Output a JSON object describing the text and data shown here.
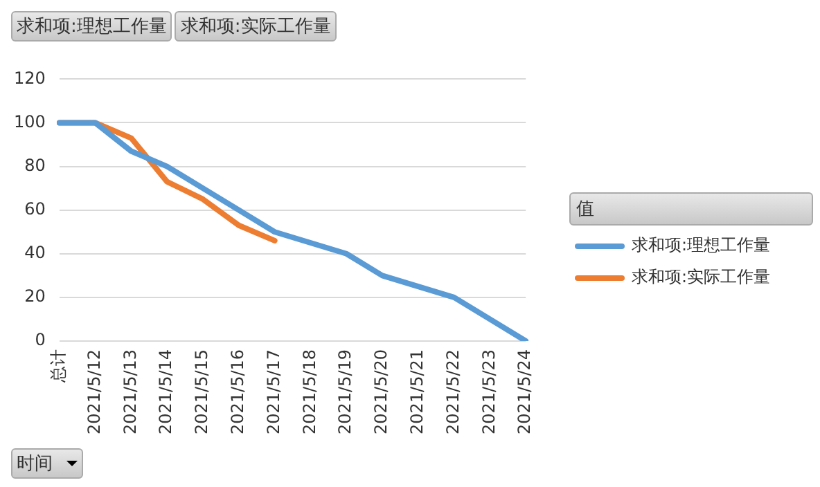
{
  "chart_data": {
    "type": "line",
    "xlabel": "时间",
    "legend_title": "值",
    "annotations": [
      "求和项:理想工作量",
      "求和项:实际工作量"
    ],
    "categories": [
      "总计",
      "2021/5/12",
      "2021/5/13",
      "2021/5/14",
      "2021/5/15",
      "2021/5/16",
      "2021/5/17",
      "2021/5/18",
      "2021/5/19",
      "2021/5/20",
      "2021/5/21",
      "2021/5/22",
      "2021/5/23",
      "2021/5/24"
    ],
    "series": [
      {
        "name": "求和项:理想工作量",
        "color": "#5b9bd5",
        "values": [
          100,
          100,
          87,
          80,
          70,
          60,
          50,
          45,
          40,
          30,
          25,
          20,
          10,
          0
        ]
      },
      {
        "name": "求和项:实际工作量",
        "color": "#ed7d31",
        "values": [
          100,
          100,
          93,
          73,
          65,
          53,
          46,
          null,
          null,
          null,
          null,
          null,
          null,
          null
        ]
      }
    ],
    "ylim": [
      0,
      120
    ],
    "yticks": [
      0,
      20,
      40,
      60,
      80,
      100,
      120
    ],
    "grid": "y",
    "legend": "right",
    "marker": "none",
    "line_style": "solid"
  }
}
